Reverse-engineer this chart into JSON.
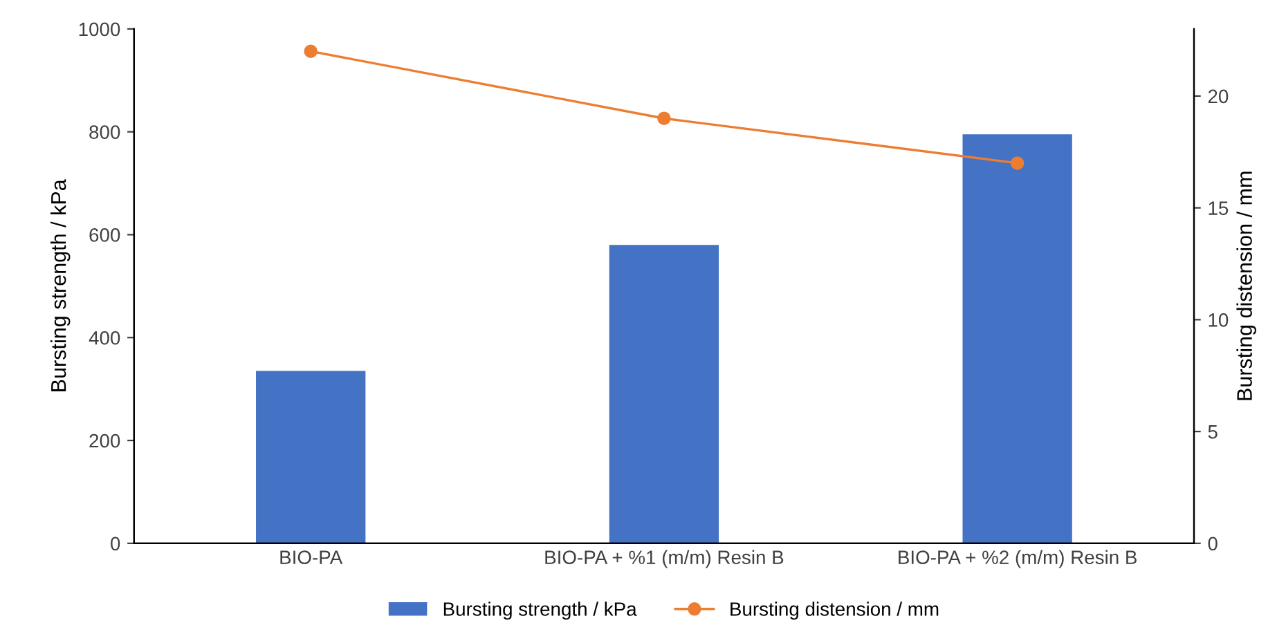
{
  "chart_data": {
    "type": "bar",
    "categories": [
      "BIO-PA",
      "BIO-PA + %1 (m/m) Resin B",
      "BIO-PA + %2 (m/m) Resin B"
    ],
    "ylabel": "Bursting strength / kPa",
    "y2label": "Bursting distension / mm",
    "series": [
      {
        "name": "Bursting strength / kPa",
        "color": "#4472c4",
        "values": [
          335,
          580,
          795
        ]
      },
      {
        "name": "Bursting distension / mm",
        "color": "#ed7d31",
        "type": "line",
        "axis": "y2",
        "marker": "circle",
        "values": [
          22,
          19,
          17
        ]
      }
    ],
    "ylim": [
      0,
      1000
    ],
    "yticks": [
      0,
      200,
      400,
      600,
      800,
      1000
    ],
    "y2lim": [
      0,
      23
    ],
    "y2ticks": [
      0,
      5,
      10,
      15,
      20
    ],
    "grid": false,
    "legend": "bottom"
  }
}
